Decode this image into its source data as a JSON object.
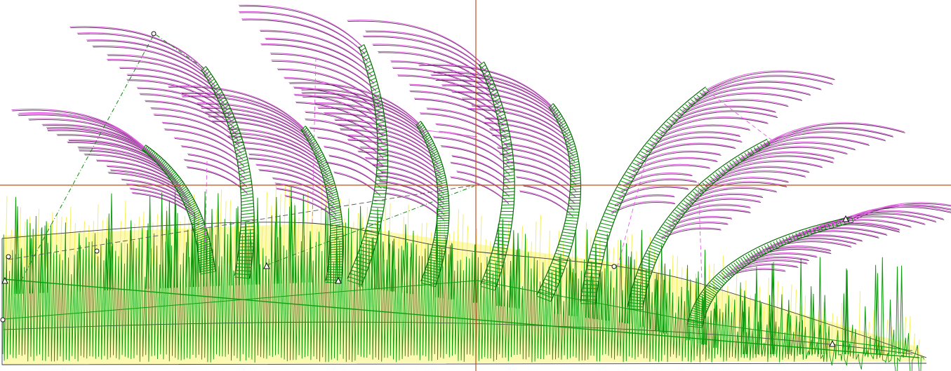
{
  "canvas": {
    "background": "#ffffff",
    "crosshair_color": "#c0501a",
    "colors": {
      "underlay_fill": "#fbf8a6",
      "underlay_stroke": "#f4ef5a",
      "grass_stroke": "#0f9a0f",
      "frond_stroke": "#109a10",
      "leaf_stroke": "#e060e0",
      "leaf_shadow": "#3a0a3a",
      "outline_stroke": "#3a3a3a",
      "guide_green": "#0f8a0f",
      "guide_pink": "#e060e0"
    },
    "node_markers": [
      "circle-node",
      "triangle-node"
    ]
  }
}
